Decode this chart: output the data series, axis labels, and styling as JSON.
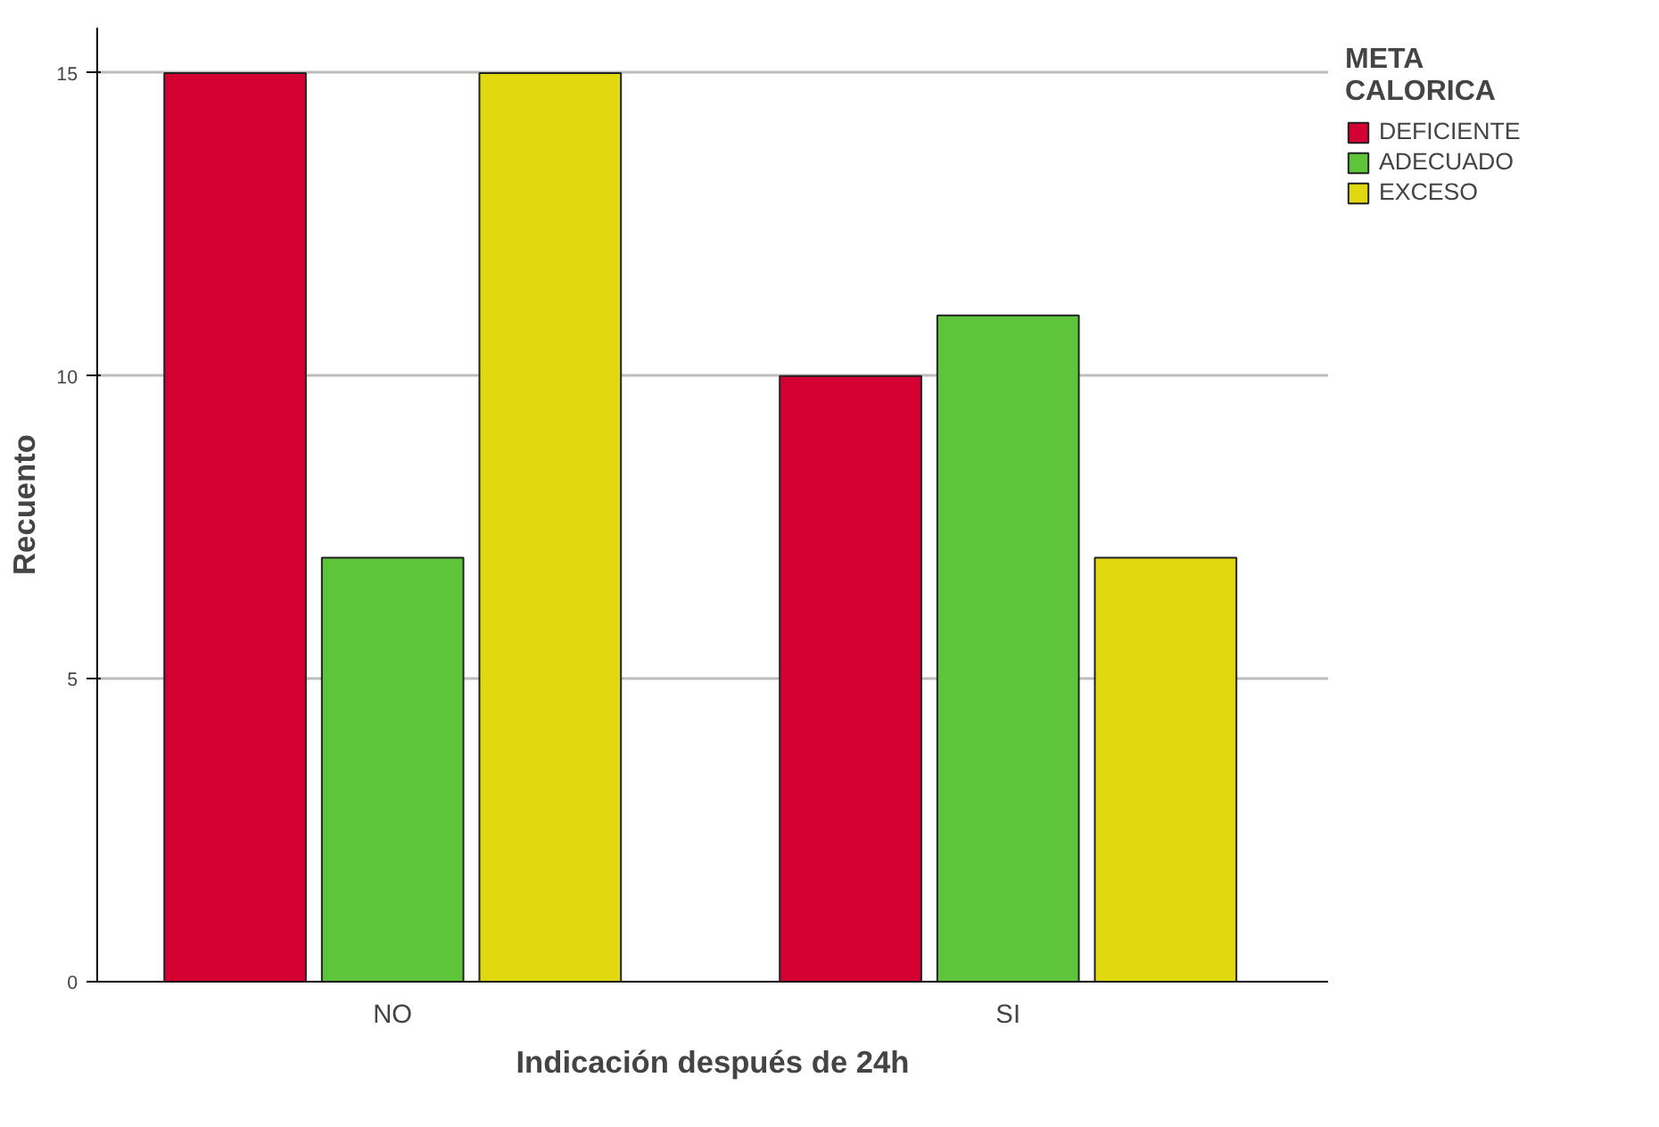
{
  "chart_data": {
    "type": "bar",
    "xlabel": "Indicación después de 24h",
    "ylabel": "Recuento",
    "legend_title": "META\nCALORICA",
    "categories": [
      "NO",
      "SI"
    ],
    "series": [
      {
        "name": "DEFICIENTE",
        "color": "#d50032",
        "values": [
          15,
          10
        ]
      },
      {
        "name": "ADECUADO",
        "color": "#5ec43a",
        "values": [
          7,
          11
        ]
      },
      {
        "name": "EXCESO",
        "color": "#e1d810",
        "values": [
          15,
          7
        ]
      }
    ],
    "ylim": [
      0,
      15.75
    ],
    "yticks": [
      0,
      5,
      10,
      15
    ],
    "grid": "y",
    "legend": "top right"
  }
}
